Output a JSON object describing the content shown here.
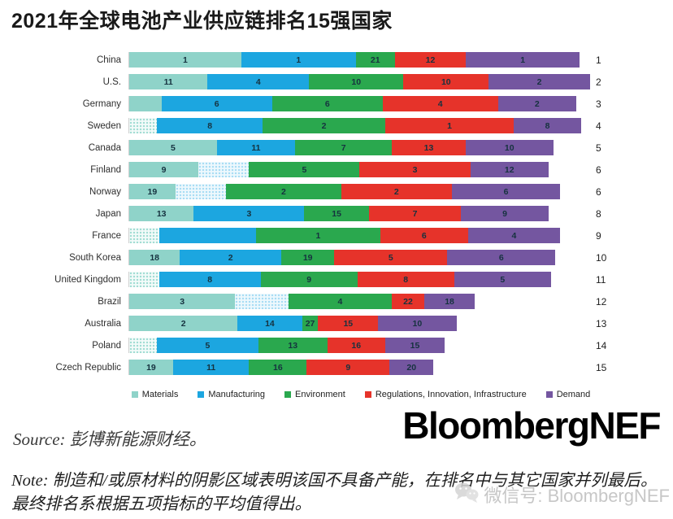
{
  "title": "2021年全球电池产业供应链排名15强国家",
  "logo": "BloombergNEF",
  "source": {
    "text": "Source: 彭博新能源财经。"
  },
  "note": {
    "text": "Note: 制造和/或原材料的阴影区域表明该国不具备产能，在排名中与其它国家并列最后。最终排名系根据五项指标的平均值得出。"
  },
  "watermark": {
    "text": "微信号: BloombergNEF"
  },
  "chart_data": {
    "type": "bar",
    "orientation": "horizontal",
    "stacked": true,
    "title": "2021年全球电池产业供应链排名15强国家",
    "legend_position": "bottom",
    "value_semantics": "数字为该国在各项指标中的排名；斜纹阴影段表示该国不具备产能（制造和/或原材料），在该指标排名中与其它国家并列最后；条形末端数字为总排名",
    "pillars": [
      {
        "name": "Materials",
        "color": "#8fd3c9",
        "hatch_bg": "#f3fbf9",
        "hatch_dot": "#9fdcd2"
      },
      {
        "name": "Manufacturing",
        "color": "#1ca6e0",
        "hatch_bg": "#edf8fd",
        "hatch_dot": "#a6dcf3"
      },
      {
        "name": "Environment",
        "color": "#2aa84e",
        "hatch_bg": "#eef9f1",
        "hatch_dot": "#9fd8b0"
      },
      {
        "name": "Regulations, Innovation, Infrastructure",
        "color": "#e6332a",
        "hatch_bg": "#fdf0ef",
        "hatch_dot": "#f2a9a5"
      },
      {
        "name": "Demand",
        "color": "#7456a0",
        "hatch_bg": "#f4f1f8",
        "hatch_dot": "#c3b4d8"
      }
    ],
    "rows": [
      {
        "country": "China",
        "overall_rank": 1,
        "segments": [
          {
            "pillar": "Materials",
            "rank": 1,
            "width_pct": 24.3,
            "hatched": false
          },
          {
            "pillar": "Manufacturing",
            "rank": 1,
            "width_pct": 24.9,
            "hatched": false
          },
          {
            "pillar": "Environment",
            "rank": 21,
            "width_pct": 8.4,
            "hatched": false
          },
          {
            "pillar": "Regulations, Innovation, Infrastructure",
            "rank": 12,
            "width_pct": 15.5,
            "hatched": false
          },
          {
            "pillar": "Demand",
            "rank": 1,
            "width_pct": 24.6,
            "hatched": false
          }
        ]
      },
      {
        "country": "U.S.",
        "overall_rank": 2,
        "segments": [
          {
            "pillar": "Materials",
            "rank": 11,
            "width_pct": 17,
            "hatched": false
          },
          {
            "pillar": "Manufacturing",
            "rank": 4,
            "width_pct": 22,
            "hatched": false
          },
          {
            "pillar": "Environment",
            "rank": 10,
            "width_pct": 20.5,
            "hatched": false
          },
          {
            "pillar": "Regulations, Innovation, Infrastructure",
            "rank": 10,
            "width_pct": 18.5,
            "hatched": false
          },
          {
            "pillar": "Demand",
            "rank": 2,
            "width_pct": 22,
            "hatched": false
          }
        ]
      },
      {
        "country": "Germany",
        "overall_rank": 3,
        "segments": [
          {
            "pillar": "Materials",
            "rank": null,
            "width_pct": 7,
            "hatched": false
          },
          {
            "pillar": "Manufacturing",
            "rank": 6,
            "width_pct": 24,
            "hatched": false
          },
          {
            "pillar": "Environment",
            "rank": 6,
            "width_pct": 24,
            "hatched": false
          },
          {
            "pillar": "Regulations, Innovation, Infrastructure",
            "rank": 4,
            "width_pct": 25,
            "hatched": false
          },
          {
            "pillar": "Demand",
            "rank": 2,
            "width_pct": 17,
            "hatched": false
          }
        ]
      },
      {
        "country": "Sweden",
        "overall_rank": 4,
        "segments": [
          {
            "pillar": "Materials",
            "rank": null,
            "width_pct": 6,
            "hatched": true
          },
          {
            "pillar": "Manufacturing",
            "rank": 8,
            "width_pct": 23,
            "hatched": false
          },
          {
            "pillar": "Environment",
            "rank": 2,
            "width_pct": 26.5,
            "hatched": false
          },
          {
            "pillar": "Regulations, Innovation, Infrastructure",
            "rank": 1,
            "width_pct": 28,
            "hatched": false
          },
          {
            "pillar": "Demand",
            "rank": 8,
            "width_pct": 14.5,
            "hatched": false
          }
        ]
      },
      {
        "country": "Canada",
        "overall_rank": 5,
        "segments": [
          {
            "pillar": "Materials",
            "rank": 5,
            "width_pct": 19,
            "hatched": false
          },
          {
            "pillar": "Manufacturing",
            "rank": 11,
            "width_pct": 17,
            "hatched": false
          },
          {
            "pillar": "Environment",
            "rank": 7,
            "width_pct": 21,
            "hatched": false
          },
          {
            "pillar": "Regulations, Innovation, Infrastructure",
            "rank": 13,
            "width_pct": 16,
            "hatched": false
          },
          {
            "pillar": "Demand",
            "rank": 10,
            "width_pct": 19,
            "hatched": false
          }
        ]
      },
      {
        "country": "Finland",
        "overall_rank": 6,
        "segments": [
          {
            "pillar": "Materials",
            "rank": 9,
            "width_pct": 15,
            "hatched": false
          },
          {
            "pillar": "Manufacturing",
            "rank": null,
            "width_pct": 11,
            "hatched": true
          },
          {
            "pillar": "Environment",
            "rank": 5,
            "width_pct": 24,
            "hatched": false
          },
          {
            "pillar": "Regulations, Innovation, Infrastructure",
            "rank": 3,
            "width_pct": 24,
            "hatched": false
          },
          {
            "pillar": "Demand",
            "rank": 12,
            "width_pct": 17,
            "hatched": false
          }
        ]
      },
      {
        "country": "Norway",
        "overall_rank": 6,
        "segments": [
          {
            "pillar": "Materials",
            "rank": 19,
            "width_pct": 10,
            "hatched": false
          },
          {
            "pillar": "Manufacturing",
            "rank": null,
            "width_pct": 11,
            "hatched": true
          },
          {
            "pillar": "Environment",
            "rank": 2,
            "width_pct": 25,
            "hatched": false
          },
          {
            "pillar": "Regulations, Innovation, Infrastructure",
            "rank": 2,
            "width_pct": 24,
            "hatched": false
          },
          {
            "pillar": "Demand",
            "rank": 6,
            "width_pct": 23.5,
            "hatched": false
          }
        ]
      },
      {
        "country": "Japan",
        "overall_rank": 8,
        "segments": [
          {
            "pillar": "Materials",
            "rank": 13,
            "width_pct": 14,
            "hatched": false
          },
          {
            "pillar": "Manufacturing",
            "rank": 3,
            "width_pct": 24,
            "hatched": false
          },
          {
            "pillar": "Environment",
            "rank": 15,
            "width_pct": 14,
            "hatched": false
          },
          {
            "pillar": "Regulations, Innovation, Infrastructure",
            "rank": 7,
            "width_pct": 20,
            "hatched": false
          },
          {
            "pillar": "Demand",
            "rank": 9,
            "width_pct": 19,
            "hatched": false
          }
        ]
      },
      {
        "country": "France",
        "overall_rank": 9,
        "segments": [
          {
            "pillar": "Materials",
            "rank": null,
            "width_pct": 6.5,
            "hatched": true
          },
          {
            "pillar": "Manufacturing",
            "rank": null,
            "width_pct": 21,
            "hatched": false
          },
          {
            "pillar": "Environment",
            "rank": 1,
            "width_pct": 27,
            "hatched": false
          },
          {
            "pillar": "Regulations, Innovation, Infrastructure",
            "rank": 6,
            "width_pct": 19,
            "hatched": false
          },
          {
            "pillar": "Demand",
            "rank": 4,
            "width_pct": 20,
            "hatched": false
          }
        ]
      },
      {
        "country": "South Korea",
        "overall_rank": 10,
        "segments": [
          {
            "pillar": "Materials",
            "rank": 18,
            "width_pct": 11,
            "hatched": false
          },
          {
            "pillar": "Manufacturing",
            "rank": 2,
            "width_pct": 22,
            "hatched": false
          },
          {
            "pillar": "Environment",
            "rank": 19,
            "width_pct": 11.5,
            "hatched": false
          },
          {
            "pillar": "Regulations, Innovation, Infrastructure",
            "rank": 5,
            "width_pct": 24.5,
            "hatched": false
          },
          {
            "pillar": "Demand",
            "rank": 6,
            "width_pct": 23.5,
            "hatched": false
          }
        ]
      },
      {
        "country": "United Kingdom",
        "overall_rank": 11,
        "segments": [
          {
            "pillar": "Materials",
            "rank": null,
            "width_pct": 6.5,
            "hatched": true
          },
          {
            "pillar": "Manufacturing",
            "rank": 8,
            "width_pct": 22,
            "hatched": false
          },
          {
            "pillar": "Environment",
            "rank": 9,
            "width_pct": 21,
            "hatched": false
          },
          {
            "pillar": "Regulations, Innovation, Infrastructure",
            "rank": 8,
            "width_pct": 21,
            "hatched": false
          },
          {
            "pillar": "Demand",
            "rank": 5,
            "width_pct": 21,
            "hatched": false
          }
        ]
      },
      {
        "country": "Brazil",
        "overall_rank": 12,
        "segments": [
          {
            "pillar": "Materials",
            "rank": 3,
            "width_pct": 23,
            "hatched": false
          },
          {
            "pillar": "Manufacturing",
            "rank": null,
            "width_pct": 11.5,
            "hatched": true
          },
          {
            "pillar": "Environment",
            "rank": 4,
            "width_pct": 22.5,
            "hatched": false
          },
          {
            "pillar": "Regulations, Innovation, Infrastructure",
            "rank": 22,
            "width_pct": 7,
            "hatched": false
          },
          {
            "pillar": "Demand",
            "rank": 18,
            "width_pct": 11,
            "hatched": false
          }
        ]
      },
      {
        "country": "Australia",
        "overall_rank": 13,
        "segments": [
          {
            "pillar": "Materials",
            "rank": 2,
            "width_pct": 23.5,
            "hatched": false
          },
          {
            "pillar": "Manufacturing",
            "rank": 14,
            "width_pct": 14,
            "hatched": false
          },
          {
            "pillar": "Environment",
            "rank": 27,
            "width_pct": 3.5,
            "hatched": false
          },
          {
            "pillar": "Regulations, Innovation, Infrastructure",
            "rank": 15,
            "width_pct": 13,
            "hatched": false
          },
          {
            "pillar": "Demand",
            "rank": 10,
            "width_pct": 17,
            "hatched": false
          }
        ]
      },
      {
        "country": "Poland",
        "overall_rank": 14,
        "segments": [
          {
            "pillar": "Materials",
            "rank": null,
            "width_pct": 6,
            "hatched": true
          },
          {
            "pillar": "Manufacturing",
            "rank": 5,
            "width_pct": 22,
            "hatched": false
          },
          {
            "pillar": "Environment",
            "rank": 13,
            "width_pct": 15,
            "hatched": false
          },
          {
            "pillar": "Regulations, Innovation, Infrastructure",
            "rank": 16,
            "width_pct": 12.5,
            "hatched": false
          },
          {
            "pillar": "Demand",
            "rank": 15,
            "width_pct": 13,
            "hatched": false
          }
        ]
      },
      {
        "country": "Czech Republic",
        "overall_rank": 15,
        "segments": [
          {
            "pillar": "Materials",
            "rank": 19,
            "width_pct": 9.5,
            "hatched": false
          },
          {
            "pillar": "Manufacturing",
            "rank": 11,
            "width_pct": 16.5,
            "hatched": false
          },
          {
            "pillar": "Environment",
            "rank": 16,
            "width_pct": 12.5,
            "hatched": false
          },
          {
            "pillar": "Regulations, Innovation, Infrastructure",
            "rank": 9,
            "width_pct": 18,
            "hatched": false
          },
          {
            "pillar": "Demand",
            "rank": 20,
            "width_pct": 9.5,
            "hatched": false
          }
        ]
      }
    ]
  }
}
